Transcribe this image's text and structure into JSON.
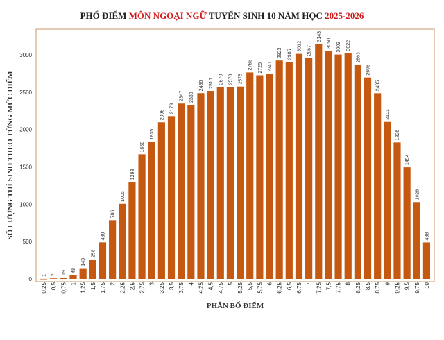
{
  "chart_data": {
    "type": "bar",
    "title_parts": [
      {
        "text": "PHỔ ĐIỂM ",
        "color": "#1f1f1f"
      },
      {
        "text": "MÔN NGOẠI NGỮ",
        "color": "#d11a1a"
      },
      {
        "text": " TUYỂN SINH 10 NĂM HỌC ",
        "color": "#1f1f1f"
      },
      {
        "text": "2025-2026",
        "color": "#d11a1a"
      }
    ],
    "xlabel": "PHÂN BỐ ĐIỂM",
    "ylabel": "SỐ LƯỢNG THÍ SINH THEO TỪNG MỨC ĐIỂM",
    "ylim": [
      0,
      3400
    ],
    "yticks": [
      0,
      500,
      1000,
      1500,
      2000,
      2500,
      3000
    ],
    "categories": [
      "0,25",
      "0,5",
      "0,75",
      "1",
      "1,25",
      "1,5",
      "1,75",
      "2",
      "2,25",
      "2,5",
      "2,75",
      "3",
      "3,25",
      "3,5",
      "3,75",
      "4",
      "4,25",
      "4,5",
      "4,75",
      "5",
      "5,25",
      "5,5",
      "5,75",
      "6",
      "6,25",
      "6,5",
      "6,75",
      "7",
      "7,25",
      "7,5",
      "7,75",
      "8",
      "8,25",
      "8,5",
      "8,75",
      "9",
      "9,25",
      "9,5",
      "9,75",
      "10"
    ],
    "values": [
      1,
      7,
      19,
      48,
      143,
      258,
      489,
      786,
      1005,
      1298,
      1668,
      1835,
      2096,
      2179,
      2347,
      2330,
      2486,
      2516,
      2570,
      2570,
      2575,
      2763,
      2725,
      2741,
      2923,
      2905,
      3012,
      2957,
      3143,
      3050,
      3003,
      3022,
      2863,
      2696,
      2485,
      2101,
      1826,
      1494,
      1028,
      488
    ],
    "bar_color": "#c65911",
    "frame_color": "#c89a6a",
    "grid": false,
    "legend": "none"
  }
}
